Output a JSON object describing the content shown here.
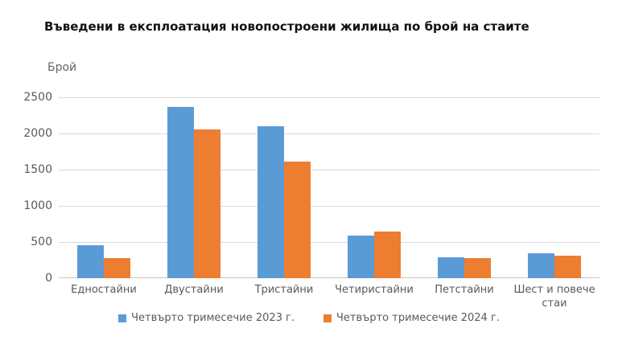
{
  "chart_data": {
    "type": "bar",
    "title": "Въведени в експлоатация новопостроени жилища по брой на стаите",
    "ylabel": "Брой",
    "xlabel": "",
    "categories": [
      "Едностайни",
      "Двустайни",
      "Тристайни",
      "Четиристайни",
      "Петстайни",
      "Шест и повече стаи"
    ],
    "series": [
      {
        "name": "Четвърто тримесечие 2023 г.",
        "color": "#5B9BD5",
        "values": [
          455,
          2370,
          2100,
          590,
          290,
          345
        ]
      },
      {
        "name": "Четвърто тримесечие 2024 г.",
        "color": "#ED7D31",
        "values": [
          280,
          2060,
          1615,
          640,
          280,
          308
        ]
      }
    ],
    "ylim": [
      0,
      2500
    ],
    "yticks": [
      0,
      500,
      1000,
      1500,
      2000,
      2500
    ],
    "grid": true,
    "legend_position": "bottom"
  },
  "colors": {
    "background": "#FFFFFF",
    "gridline": "#D9D9D9",
    "axis_line": "#C6C6C6",
    "label_text": "#595959",
    "title_text": "#121212",
    "series_2023": "#5B9BD5",
    "series_2024": "#ED7D31"
  }
}
